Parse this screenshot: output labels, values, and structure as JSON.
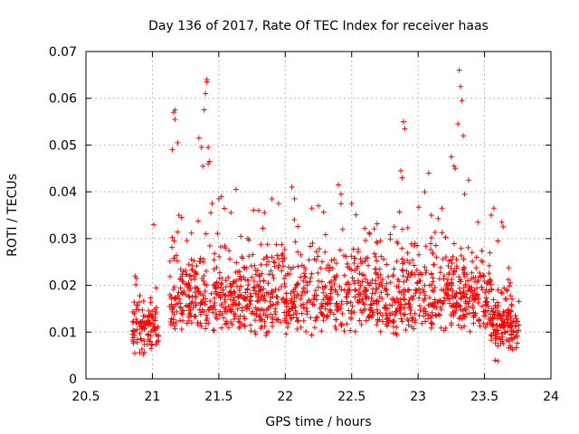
{
  "chart_data": {
    "type": "scatter",
    "title": "Day 136 of 2017, Rate Of TEC Index for receiver haas",
    "xlabel": "GPS time / hours",
    "ylabel": "ROTI / TECUs",
    "xlim": [
      20.5,
      24
    ],
    "ylim": [
      0,
      0.07
    ],
    "x_ticks": [
      "20.5",
      "21",
      "21.5",
      "22",
      "22.5",
      "23",
      "23.5",
      "24"
    ],
    "y_ticks": [
      "0",
      "0.01",
      "0.02",
      "0.03",
      "0.04",
      "0.05",
      "0.06",
      "0.07"
    ],
    "grid": true,
    "marker": "+",
    "color": "#ff0000",
    "segments": [
      {
        "x_range": [
          20.85,
          21.05
        ],
        "base": 0.012,
        "spread": 0.012,
        "n": 110
      },
      {
        "x_range": [
          21.13,
          23.55
        ],
        "base": 0.016,
        "spread": 0.022,
        "n": 1300
      },
      {
        "x_range": [
          23.54,
          23.76
        ],
        "base": 0.012,
        "spread": 0.014,
        "n": 150
      }
    ],
    "series": [
      {
        "x": [
          20.87,
          20.88,
          21.01,
          21.15,
          21.16,
          21.17,
          21.17,
          21.19,
          21.2,
          21.22,
          21.35,
          21.37,
          21.38,
          21.39,
          21.4,
          21.41,
          21.41,
          21.42,
          21.42,
          21.43,
          21.44,
          21.45,
          21.5,
          21.52,
          21.63,
          21.8,
          21.9,
          21.95,
          22.05,
          22.07,
          22.2,
          22.25,
          22.4,
          22.42,
          22.5,
          22.82,
          22.87,
          22.88,
          22.89,
          22.9,
          23.05,
          23.08,
          23.1,
          23.18,
          23.25,
          23.27,
          23.28,
          23.3,
          23.31,
          23.32,
          23.33,
          23.34,
          23.35,
          23.38,
          23.45,
          23.55,
          23.57,
          23.6,
          23.63,
          23.64,
          23.6,
          23.58
        ],
        "y": [
          0.022,
          0.0215,
          0.033,
          0.049,
          0.057,
          0.0575,
          0.0555,
          0.0505,
          0.035,
          0.0345,
          0.0515,
          0.0495,
          0.0455,
          0.0575,
          0.061,
          0.0635,
          0.064,
          0.0495,
          0.046,
          0.0465,
          0.0355,
          0.0375,
          0.0385,
          0.039,
          0.0405,
          0.036,
          0.0385,
          0.0375,
          0.041,
          0.0385,
          0.0365,
          0.037,
          0.0415,
          0.0395,
          0.0375,
          0.0325,
          0.0445,
          0.043,
          0.055,
          0.0535,
          0.04,
          0.044,
          0.035,
          0.0365,
          0.0475,
          0.0455,
          0.045,
          0.0545,
          0.066,
          0.0625,
          0.0595,
          0.052,
          0.0395,
          0.0425,
          0.0335,
          0.035,
          0.0365,
          0.0295,
          0.0335,
          0.0325,
          0.0038,
          0.004
        ]
      }
    ]
  }
}
